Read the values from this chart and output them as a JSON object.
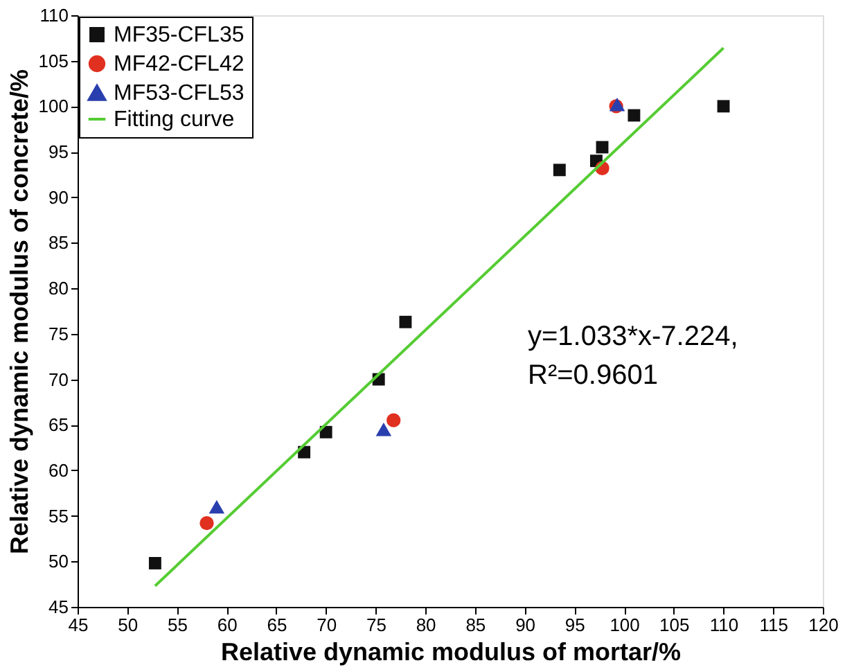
{
  "chart_data": {
    "type": "scatter",
    "xlabel": "Relative dynamic modulus of mortar/%",
    "ylabel": "Relative dynamic modulus of concrete/%",
    "series": [
      {
        "name": "MF35-CFL35",
        "type": "scatter",
        "marker": "square",
        "color": "#111111",
        "x": [
          52.8,
          67.8,
          70,
          75.3,
          78,
          93.5,
          97.2,
          97.8,
          101,
          110
        ],
        "values": [
          49.8,
          62,
          64.2,
          70,
          76.3,
          93,
          94,
          95.5,
          99,
          100
        ]
      },
      {
        "name": "MF42-CFL42",
        "type": "scatter",
        "marker": "circle",
        "color": "#e03020",
        "x": [
          58,
          76.8,
          97.8,
          99.2
        ],
        "values": [
          54.2,
          65.5,
          93.2,
          100
        ]
      },
      {
        "name": "MF53-CFL53",
        "type": "scatter",
        "marker": "triangle",
        "color": "#2a3fae",
        "x": [
          59,
          75.8,
          99.3
        ],
        "values": [
          56,
          64.5,
          100.2
        ]
      },
      {
        "name": "Fitting curve",
        "type": "line",
        "marker": "none",
        "color": "#55cc33",
        "x": [
          52.8,
          110
        ],
        "values": [
          47.3,
          106.4
        ]
      }
    ],
    "xlim": [
      45,
      120
    ],
    "xticks": [
      45,
      50,
      55,
      60,
      65,
      70,
      75,
      80,
      85,
      90,
      95,
      100,
      105,
      110,
      115,
      120
    ],
    "ylim": [
      45,
      110
    ],
    "yticks": [
      45,
      50,
      55,
      60,
      65,
      70,
      75,
      80,
      85,
      90,
      95,
      100,
      105,
      110
    ],
    "grid": false,
    "legend": "top left",
    "annotations": [
      "y=1.033*x-7.224,",
      "R²=0.9601"
    ]
  }
}
